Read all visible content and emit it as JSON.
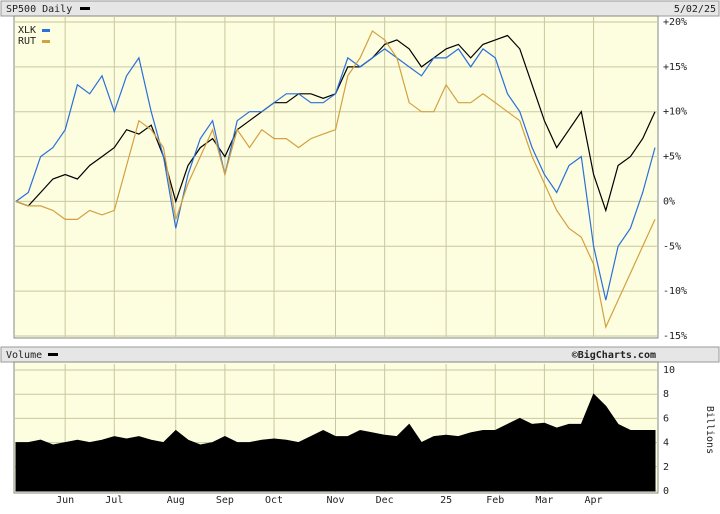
{
  "chart_data": [
    {
      "type": "line",
      "date": "5/02/25",
      "ylim": [
        -15,
        20
      ],
      "yticks": [
        {
          "value": -15,
          "label": "-15%"
        },
        {
          "value": -10,
          "label": "-10%"
        },
        {
          "value": -5,
          "label": "-5%"
        },
        {
          "value": 0,
          "label": "0%"
        },
        {
          "value": 5,
          "label": "+5%"
        },
        {
          "value": 10,
          "label": "+10%"
        },
        {
          "value": 15,
          "label": "+15%"
        },
        {
          "value": 20,
          "label": "+20%"
        }
      ],
      "grid": true,
      "series": [
        {
          "name": "SP500 Daily",
          "color": "#000000",
          "values": [
            0,
            -0.5,
            1,
            2.5,
            3,
            2.5,
            4,
            5,
            6,
            8,
            7.5,
            8.5,
            5,
            0,
            4,
            6,
            7,
            5,
            8,
            9,
            10,
            11,
            11,
            12,
            12,
            11.5,
            12,
            15,
            15,
            16,
            17.5,
            18,
            17,
            15,
            16,
            17,
            17.5,
            16,
            17.5,
            18,
            18.5,
            17,
            13,
            9,
            6,
            8,
            10,
            3,
            -1,
            4,
            5,
            7,
            10
          ]
        },
        {
          "name": "XLK",
          "color": "#2a6fdb",
          "values": [
            0,
            1,
            5,
            6,
            8,
            13,
            12,
            14,
            10,
            14,
            16,
            10,
            5,
            -3,
            3,
            7,
            9,
            3,
            9,
            10,
            10,
            11,
            12,
            12,
            11,
            11,
            12,
            16,
            15,
            16,
            17,
            16,
            15,
            14,
            16,
            16,
            17,
            15,
            17,
            16,
            12,
            10,
            6,
            3,
            1,
            4,
            5,
            -5,
            -11,
            -5,
            -3,
            1,
            6
          ]
        },
        {
          "name": "RUT",
          "color": "#d4a040",
          "values": [
            0,
            -0.5,
            -0.5,
            -1,
            -2,
            -2,
            -1,
            -1.5,
            -1,
            4,
            9,
            8,
            6,
            -2,
            2,
            5,
            8,
            3,
            8,
            6,
            8,
            7,
            7,
            6,
            7,
            7.5,
            8,
            14,
            16,
            19,
            18,
            16,
            11,
            10,
            10,
            13,
            11,
            11,
            12,
            11,
            10,
            9,
            5,
            2,
            -1,
            -3,
            -4,
            -7,
            -14,
            -11,
            -8,
            -5,
            -2
          ]
        }
      ]
    },
    {
      "type": "area",
      "title": "Volume",
      "source": "©BigCharts.com",
      "ylabel": "Billions",
      "color": "#000000",
      "categories": [
        null,
        null,
        null,
        null,
        "Jun",
        null,
        null,
        null,
        "Jul",
        null,
        null,
        null,
        null,
        "Aug",
        null,
        null,
        null,
        "Sep",
        null,
        null,
        null,
        "Oct",
        null,
        null,
        null,
        null,
        "Nov",
        null,
        null,
        null,
        "Dec",
        null,
        null,
        null,
        null,
        "25",
        null,
        null,
        null,
        "Feb",
        null,
        null,
        null,
        "Mar",
        null,
        null,
        null,
        "Apr",
        null,
        null,
        null,
        null,
        null
      ],
      "values": [
        4.0,
        4.0,
        4.2,
        3.8,
        4.0,
        4.2,
        4.0,
        4.2,
        4.5,
        4.3,
        4.5,
        4.2,
        4.0,
        5.0,
        4.2,
        3.8,
        4.0,
        4.5,
        4.0,
        4.0,
        4.2,
        4.3,
        4.2,
        4.0,
        4.5,
        5.0,
        4.5,
        4.5,
        5.0,
        4.8,
        4.6,
        4.5,
        5.5,
        4.0,
        4.5,
        4.6,
        4.5,
        4.8,
        5.0,
        5.0,
        5.5,
        6.0,
        5.5,
        5.6,
        5.2,
        5.5,
        5.5,
        8.0,
        7.0,
        5.5,
        5.0,
        5.0,
        5.0
      ],
      "ylim": [
        0,
        10
      ],
      "yticks": [
        0,
        2,
        4,
        6,
        8,
        10
      ],
      "grid": true
    }
  ]
}
